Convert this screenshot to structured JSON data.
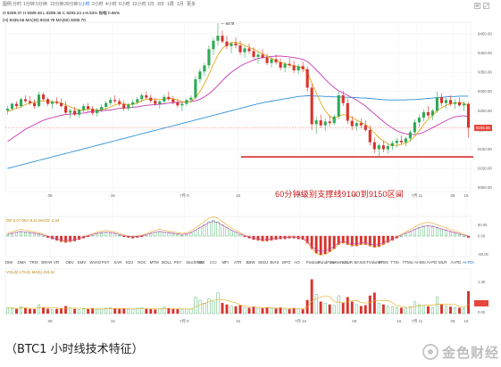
{
  "toolbar": {
    "left_items": [
      "图例",
      "分时",
      "1分钟",
      "5分钟",
      "15分钟",
      "30分钟",
      "1小时",
      "2小时",
      "4小时",
      "6小时",
      "12小时",
      "1日",
      "3日",
      "1周",
      "1月",
      "更多"
    ],
    "active_item": "1小时"
  },
  "info_lines": [
    {
      "text": "O 9289.37  H 9289.46  L 9289.46  C 9293.24  ±-6.53%  振幅 0.66%",
      "color": "#555555"
    },
    {
      "text": "(H) 9335.56  MA(30) 9319.78  MA(60) 9280.70",
      "color": "#b8860b"
    }
  ],
  "price_axis": {
    "ticks": [
      "9450.00",
      "9400.00",
      "9350.00",
      "9300.00",
      "9250.00",
      "9200.00",
      "9150.00",
      "9100.00",
      "9050.00"
    ],
    "last_price_label": "9205.86",
    "last_price_color": "#e8453c"
  },
  "markers": {
    "high": "9478"
  },
  "date_labels": [
    "08",
    "16",
    "7月 9",
    "16",
    "7月 10",
    "08",
    "16",
    "7月 11",
    "08",
    "16"
  ],
  "annotation": "60分钟级别支撑线9100到9150区间",
  "macd_header": "DIF 6.07  DEA 8.41  MACD -2.34",
  "macd_axis": [
    "50.00",
    "0.00",
    "-50.00"
  ],
  "volume_header": "VOL(5) 179.91  MA(5) 218.42",
  "volume_axis": [
    "1.3K",
    "0.00"
  ],
  "indicator_tabs": [
    "DMI",
    "DMA",
    "TRIX",
    "BRAR",
    "VR",
    "OBV",
    "EMV",
    "WVAD",
    "PSY",
    "SAR",
    "KDJ",
    "ROC",
    "MTM",
    "BOLL",
    "PSY",
    "StochRSI",
    "SMI",
    "CCI",
    "MFI",
    "ATR",
    "BBW",
    "SKDJ",
    "BIAS",
    "DPO",
    "AO",
    "Position",
    "FundFlow",
    "AI-NetVOL",
    "LSUR",
    "BASIS",
    "TVolume",
    "FTBS",
    "TTSI",
    "TTMU",
    "AI-BSI",
    "AI-PD",
    "MLR",
    "AI-PD",
    "AI-FDI"
  ],
  "active_indicator": "AI-FDI",
  "caption": "（BTC1 小时线技术特征）",
  "brand": "金色财经",
  "colors": {
    "up": "#2eaa56",
    "down": "#d8322c",
    "ma_fast": "#e2a917",
    "ma_mid": "#2aa58e",
    "ma_slow": "#c43ab7",
    "ma_long": "#2c8fd8",
    "support": "#d01919",
    "accent": "#2f6fd6"
  },
  "chart_data": {
    "type": "candlestick",
    "title": "",
    "ylim": [
      9040,
      9480
    ],
    "support_line": 9130,
    "candles": [
      [
        9250,
        9262,
        9240,
        9255
      ],
      [
        9255,
        9272,
        9250,
        9268
      ],
      [
        9268,
        9275,
        9255,
        9262
      ],
      [
        9262,
        9285,
        9258,
        9280
      ],
      [
        9280,
        9290,
        9270,
        9275
      ],
      [
        9275,
        9288,
        9265,
        9270
      ],
      [
        9270,
        9280,
        9255,
        9262
      ],
      [
        9262,
        9300,
        9258,
        9292
      ],
      [
        9292,
        9298,
        9276,
        9280
      ],
      [
        9280,
        9285,
        9262,
        9268
      ],
      [
        9268,
        9278,
        9255,
        9274
      ],
      [
        9274,
        9285,
        9266,
        9270
      ],
      [
        9270,
        9282,
        9258,
        9262
      ],
      [
        9262,
        9275,
        9240,
        9245
      ],
      [
        9245,
        9256,
        9230,
        9250
      ],
      [
        9250,
        9260,
        9236,
        9240
      ],
      [
        9240,
        9255,
        9232,
        9252
      ],
      [
        9252,
        9268,
        9246,
        9262
      ],
      [
        9262,
        9270,
        9248,
        9255
      ],
      [
        9255,
        9262,
        9238,
        9244
      ],
      [
        9244,
        9258,
        9235,
        9252
      ],
      [
        9252,
        9266,
        9246,
        9260
      ],
      [
        9260,
        9275,
        9252,
        9270
      ],
      [
        9270,
        9285,
        9264,
        9278
      ],
      [
        9278,
        9290,
        9270,
        9275
      ],
      [
        9275,
        9282,
        9262,
        9268
      ],
      [
        9268,
        9276,
        9250,
        9256
      ],
      [
        9256,
        9270,
        9250,
        9266
      ],
      [
        9266,
        9280,
        9258,
        9272
      ],
      [
        9272,
        9286,
        9266,
        9280
      ],
      [
        9280,
        9296,
        9272,
        9290
      ],
      [
        9290,
        9300,
        9280,
        9284
      ],
      [
        9284,
        9292,
        9270,
        9276
      ],
      [
        9276,
        9284,
        9262,
        9268
      ],
      [
        9268,
        9278,
        9256,
        9274
      ],
      [
        9274,
        9292,
        9268,
        9286
      ],
      [
        9286,
        9300,
        9276,
        9280
      ],
      [
        9280,
        9288,
        9266,
        9272
      ],
      [
        9272,
        9280,
        9258,
        9264
      ],
      [
        9264,
        9272,
        9250,
        9268
      ],
      [
        9268,
        9282,
        9262,
        9278
      ],
      [
        9278,
        9290,
        9270,
        9284
      ],
      [
        9284,
        9340,
        9280,
        9332
      ],
      [
        9332,
        9360,
        9322,
        9352
      ],
      [
        9352,
        9375,
        9340,
        9368
      ],
      [
        9368,
        9420,
        9360,
        9410
      ],
      [
        9410,
        9440,
        9395,
        9432
      ],
      [
        9432,
        9478,
        9420,
        9445
      ],
      [
        9445,
        9458,
        9425,
        9430
      ],
      [
        9430,
        9445,
        9410,
        9418
      ],
      [
        9418,
        9430,
        9400,
        9425
      ],
      [
        9425,
        9440,
        9412,
        9420
      ],
      [
        9420,
        9432,
        9395,
        9402
      ],
      [
        9402,
        9418,
        9388,
        9412
      ],
      [
        9412,
        9425,
        9398,
        9405
      ],
      [
        9405,
        9415,
        9385,
        9390
      ],
      [
        9390,
        9402,
        9372,
        9396
      ],
      [
        9396,
        9410,
        9385,
        9388
      ],
      [
        9388,
        9398,
        9368,
        9374
      ],
      [
        9374,
        9390,
        9362,
        9384
      ],
      [
        9384,
        9396,
        9370,
        9376
      ],
      [
        9376,
        9386,
        9355,
        9362
      ],
      [
        9362,
        9378,
        9350,
        9372
      ],
      [
        9372,
        9388,
        9362,
        9368
      ],
      [
        9368,
        9380,
        9348,
        9355
      ],
      [
        9355,
        9372,
        9345,
        9366
      ],
      [
        9366,
        9378,
        9350,
        9358
      ],
      [
        9358,
        9365,
        9300,
        9310
      ],
      [
        9310,
        9320,
        9200,
        9215
      ],
      [
        9215,
        9235,
        9190,
        9225
      ],
      [
        9225,
        9240,
        9205,
        9212
      ],
      [
        9212,
        9230,
        9198,
        9222
      ],
      [
        9222,
        9238,
        9210,
        9218
      ],
      [
        9218,
        9240,
        9212,
        9235
      ],
      [
        9235,
        9300,
        9228,
        9290
      ],
      [
        9290,
        9302,
        9262,
        9270
      ],
      [
        9270,
        9282,
        9215,
        9224
      ],
      [
        9224,
        9236,
        9200,
        9210
      ],
      [
        9210,
        9224,
        9198,
        9218
      ],
      [
        9218,
        9230,
        9204,
        9212
      ],
      [
        9212,
        9225,
        9195,
        9200
      ],
      [
        9200,
        9212,
        9160,
        9168
      ],
      [
        9168,
        9180,
        9140,
        9150
      ],
      [
        9150,
        9165,
        9132,
        9160
      ],
      [
        9160,
        9172,
        9142,
        9150
      ],
      [
        9150,
        9164,
        9138,
        9158
      ],
      [
        9158,
        9172,
        9148,
        9166
      ],
      [
        9166,
        9180,
        9155,
        9172
      ],
      [
        9172,
        9186,
        9162,
        9168
      ],
      [
        9168,
        9182,
        9158,
        9178
      ],
      [
        9178,
        9200,
        9170,
        9194
      ],
      [
        9194,
        9228,
        9188,
        9220
      ],
      [
        9220,
        9240,
        9208,
        9232
      ],
      [
        9232,
        9254,
        9222,
        9246
      ],
      [
        9246,
        9262,
        9232,
        9238
      ],
      [
        9238,
        9255,
        9226,
        9250
      ],
      [
        9250,
        9300,
        9244,
        9285
      ],
      [
        9285,
        9296,
        9262,
        9270
      ],
      [
        9270,
        9284,
        9256,
        9278
      ],
      [
        9278,
        9290,
        9262,
        9268
      ],
      [
        9268,
        9280,
        9255,
        9272
      ],
      [
        9272,
        9285,
        9260,
        9264
      ],
      [
        9264,
        9275,
        9250,
        9268
      ],
      [
        9268,
        9272,
        9180,
        9206
      ]
    ],
    "ma_fast": [
      9248,
      9252,
      9256,
      9260,
      9266,
      9270,
      9272,
      9274,
      9276,
      9275,
      9273,
      9272,
      9270,
      9266,
      9260,
      9255,
      9252,
      9252,
      9254,
      9254,
      9252,
      9252,
      9255,
      9260,
      9265,
      9268,
      9267,
      9266,
      9267,
      9270,
      9276,
      9280,
      9281,
      9280,
      9279,
      9280,
      9282,
      9281,
      9278,
      9274,
      9272,
      9274,
      9284,
      9300,
      9320,
      9344,
      9370,
      9395,
      9412,
      9422,
      9427,
      9428,
      9425,
      9420,
      9415,
      9410,
      9404,
      9398,
      9392,
      9386,
      9381,
      9376,
      9372,
      9369,
      9366,
      9364,
      9362,
      9350,
      9322,
      9296,
      9270,
      9250,
      9236,
      9228,
      9236,
      9240,
      9238,
      9232,
      9226,
      9220,
      9214,
      9204,
      9192,
      9180,
      9172,
      9164,
      9160,
      9160,
      9163,
      9166,
      9172,
      9184,
      9198,
      9214,
      9228,
      9238,
      9250,
      9258,
      9264,
      9268,
      9270,
      9271,
      9270,
      9262
    ],
    "ma_slow": [
      9170,
      9178,
      9186,
      9194,
      9202,
      9208,
      9214,
      9220,
      9225,
      9229,
      9232,
      9235,
      9238,
      9240,
      9241,
      9242,
      9243,
      9244,
      9246,
      9248,
      9249,
      9250,
      9251,
      9252,
      9254,
      9256,
      9257,
      9258,
      9259,
      9260,
      9262,
      9264,
      9265,
      9266,
      9267,
      9268,
      9270,
      9271,
      9272,
      9272,
      9273,
      9274,
      9276,
      9280,
      9286,
      9294,
      9304,
      9316,
      9328,
      9340,
      9350,
      9358,
      9366,
      9372,
      9377,
      9382,
      9386,
      9388,
      9390,
      9391,
      9392,
      9392,
      9391,
      9390,
      9388,
      9386,
      9384,
      9378,
      9368,
      9356,
      9344,
      9332,
      9320,
      9310,
      9302,
      9296,
      9290,
      9284,
      9278,
      9270,
      9262,
      9252,
      9242,
      9232,
      9222,
      9213,
      9205,
      9198,
      9193,
      9190,
      9188,
      9188,
      9190,
      9194,
      9200,
      9206,
      9212,
      9218,
      9224,
      9230,
      9234,
      9236,
      9237,
      9235
    ],
    "ma_long": [
      9100,
      9103,
      9106,
      9109,
      9112,
      9115,
      9118,
      9121,
      9124,
      9127,
      9130,
      9133,
      9136,
      9139,
      9142,
      9145,
      9148,
      9151,
      9154,
      9157,
      9160,
      9163,
      9166,
      9169,
      9172,
      9175,
      9178,
      9181,
      9184,
      9187,
      9190,
      9193,
      9196,
      9199,
      9202,
      9205,
      9208,
      9211,
      9214,
      9217,
      9220,
      9223,
      9226,
      9229,
      9232,
      9235,
      9238,
      9241,
      9244,
      9247,
      9250,
      9253,
      9256,
      9259,
      9262,
      9265,
      9268,
      9271,
      9273,
      9275,
      9277,
      9279,
      9281,
      9283,
      9285,
      9287,
      9288,
      9289,
      9289,
      9288,
      9288,
      9287,
      9287,
      9286,
      9286,
      9285,
      9285,
      9284,
      9284,
      9283,
      9283,
      9282,
      9281,
      9280,
      9279,
      9278,
      9278,
      9278,
      9278,
      9278,
      9279,
      9279,
      9280,
      9281,
      9282,
      9283,
      9284,
      9285,
      9286,
      9287,
      9287,
      9288,
      9288,
      9288
    ],
    "macd_hist": [
      2,
      3,
      5,
      6,
      5,
      4,
      3,
      2,
      0,
      -2,
      -4,
      -6,
      -8,
      -9,
      -8,
      -7,
      -5,
      -3,
      -1,
      1,
      3,
      4,
      5,
      4,
      3,
      1,
      -1,
      -2,
      -3,
      -2,
      -1,
      1,
      3,
      5,
      6,
      5,
      4,
      3,
      2,
      1,
      2,
      4,
      8,
      12,
      16,
      20,
      22,
      20,
      16,
      12,
      8,
      5,
      2,
      -1,
      -3,
      -5,
      -6,
      -7,
      -7,
      -6,
      -5,
      -4,
      -4,
      -3,
      -3,
      -4,
      -5,
      -10,
      -18,
      -24,
      -26,
      -25,
      -22,
      -18,
      -12,
      -10,
      -12,
      -14,
      -14,
      -12,
      -12,
      -14,
      -16,
      -15,
      -12,
      -9,
      -6,
      -3,
      0,
      3,
      6,
      9,
      12,
      14,
      15,
      14,
      12,
      10,
      8,
      6,
      4,
      2,
      0,
      -2
    ],
    "volume": [
      40,
      35,
      30,
      45,
      38,
      30,
      28,
      60,
      40,
      32,
      28,
      30,
      34,
      50,
      38,
      30,
      28,
      32,
      30,
      34,
      28,
      30,
      36,
      40,
      34,
      30,
      32,
      28,
      30,
      36,
      40,
      30,
      28,
      26,
      30,
      44,
      36,
      30,
      28,
      26,
      30,
      32,
      110,
      90,
      70,
      100,
      80,
      140,
      70,
      60,
      50,
      48,
      55,
      40,
      38,
      45,
      36,
      34,
      40,
      35,
      34,
      40,
      30,
      28,
      36,
      30,
      28,
      90,
      230,
      130,
      80,
      70,
      60,
      55,
      120,
      70,
      110,
      80,
      60,
      50,
      55,
      120,
      140,
      70,
      60,
      50,
      45,
      40,
      38,
      36,
      45,
      80,
      60,
      55,
      48,
      40,
      110,
      60,
      50,
      45,
      40,
      38,
      36,
      150
    ]
  }
}
